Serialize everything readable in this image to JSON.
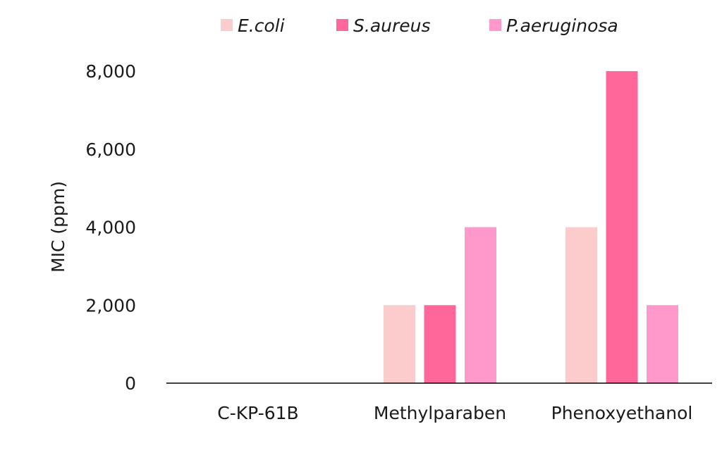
{
  "chart_data": {
    "type": "bar",
    "categories": [
      "C-KP-61B",
      "Methylparaben",
      "Phenoxyethanol"
    ],
    "series": [
      {
        "name": "E.coli",
        "color": "#fccccc",
        "values": [
          4,
          2000,
          4000
        ]
      },
      {
        "name": "S.aureus",
        "color": "#ff6699",
        "values": [
          8,
          2000,
          8000
        ]
      },
      {
        "name": "P.aeruginosa",
        "color": "#ff99cc",
        "values": [
          4,
          4000,
          2000
        ]
      }
    ],
    "ylabel": "MIC (ppm)",
    "xlabel": "",
    "ylim": [
      0,
      8000
    ],
    "yticks": [
      0,
      2000,
      4000,
      6000,
      8000
    ],
    "ytick_labels": [
      "0",
      "2,000",
      "4,000",
      "6,000",
      "8,000"
    ],
    "grid": false,
    "legend_position": "top-center",
    "axis_color": "#000000"
  }
}
